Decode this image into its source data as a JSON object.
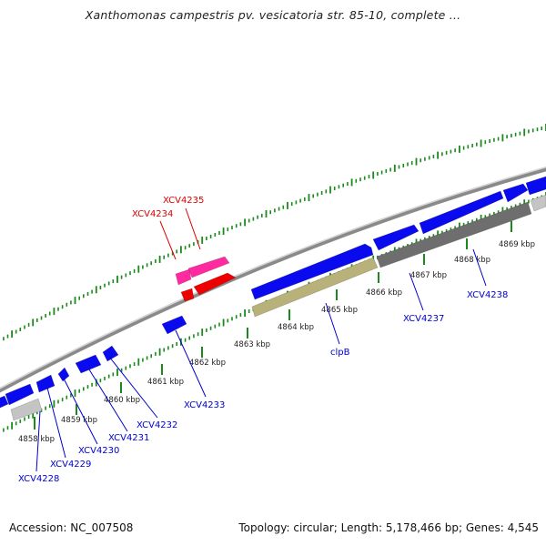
{
  "header": {
    "title": "Xanthomonas campestris pv. vesicatoria str. 85-10, complete ..."
  },
  "footer": {
    "accession": "Accession: NC_007508",
    "summary": "Topology: circular; Length: 5,178,466 bp; Genes: 4,545"
  },
  "colors": {
    "forward_gene": "#0a0aee",
    "reverse_gene": "#0a0aee",
    "rna_gene": "#b8b27a",
    "pseudo_gene": "#6e6e6e",
    "light_gene": "#c4c4c4",
    "highlight_gene_a": "#ff2aa0",
    "highlight_gene_b": "#ee0000",
    "ticks": "#1a8a1a",
    "label_blue": "#0000cc",
    "label_red": "#dd0000"
  },
  "scale": {
    "unit": "kbp",
    "ticks": [
      {
        "kbp": 4858,
        "label": "4858 kbp"
      },
      {
        "kbp": 4859,
        "label": "4859 kbp"
      },
      {
        "kbp": 4860,
        "label": "4860 kbp"
      },
      {
        "kbp": 4861,
        "label": "4861 kbp"
      },
      {
        "kbp": 4862,
        "label": "4862 kbp"
      },
      {
        "kbp": 4863,
        "label": "4863 kbp"
      },
      {
        "kbp": 4864,
        "label": "4864 kbp"
      },
      {
        "kbp": 4865,
        "label": "4865 kbp"
      },
      {
        "kbp": 4866,
        "label": "4866 kbp"
      },
      {
        "kbp": 4867,
        "label": "4867 kbp"
      },
      {
        "kbp": 4868,
        "label": "4868 kbp"
      },
      {
        "kbp": 4869,
        "label": "4869 kbp"
      }
    ]
  },
  "gene_labels": [
    {
      "name": "XCV4228",
      "color": "label_blue"
    },
    {
      "name": "XCV4229",
      "color": "label_blue"
    },
    {
      "name": "XCV4230",
      "color": "label_blue"
    },
    {
      "name": "XCV4231",
      "color": "label_blue"
    },
    {
      "name": "XCV4232",
      "color": "label_blue"
    },
    {
      "name": "XCV4233",
      "color": "label_blue"
    },
    {
      "name": "clpB",
      "color": "label_blue"
    },
    {
      "name": "XCV4237",
      "color": "label_blue"
    },
    {
      "name": "XCV4238",
      "color": "label_blue"
    },
    {
      "name": "XCV4234",
      "color": "label_red"
    },
    {
      "name": "XCV4235",
      "color": "label_red"
    }
  ]
}
